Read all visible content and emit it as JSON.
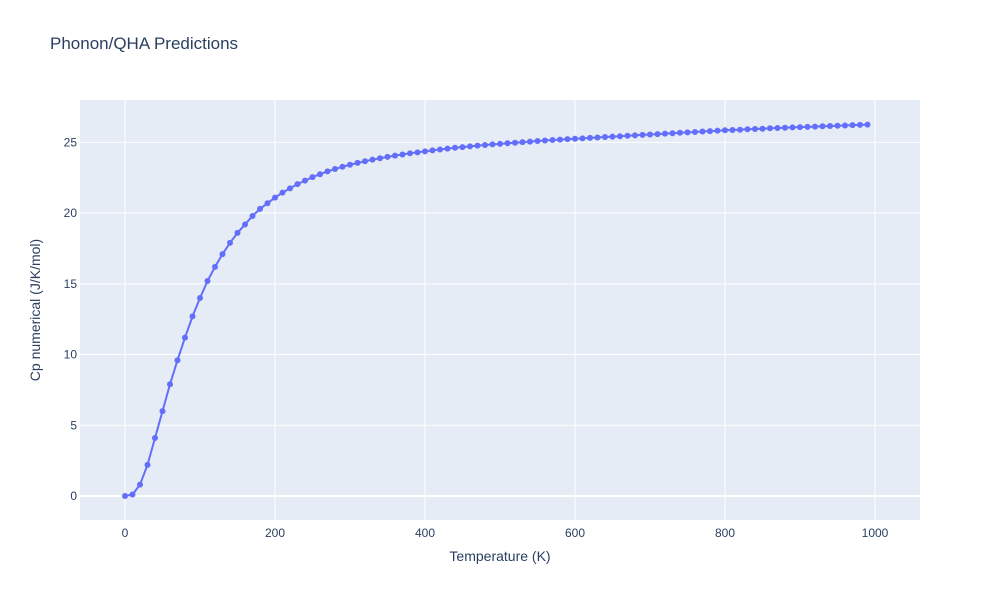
{
  "title": "Phonon/QHA Predictions",
  "chart_data": {
    "type": "line",
    "mode": "lines+markers",
    "title": "Phonon/QHA Predictions",
    "xlabel": "Temperature (K)",
    "ylabel": "Cp numerical (J/K/mol)",
    "xlim": [
      -60,
      1060
    ],
    "ylim": [
      -1.7,
      28
    ],
    "xticks": [
      0,
      200,
      400,
      600,
      800,
      1000
    ],
    "yticks": [
      0,
      5,
      10,
      15,
      20,
      25
    ],
    "grid": true,
    "legend": "none",
    "colors": {
      "series": "#636efa",
      "plot_bg": "#e5ecf6",
      "grid": "#ffffff",
      "text": "#2a3f5f"
    },
    "series": [
      {
        "x": [
          0,
          10,
          20,
          30,
          40,
          50,
          60,
          70,
          80,
          90,
          100,
          110,
          120,
          130,
          140,
          150,
          160,
          170,
          180,
          190,
          200,
          210,
          220,
          230,
          240,
          250,
          260,
          270,
          280,
          290,
          300,
          310,
          320,
          330,
          340,
          350,
          360,
          370,
          380,
          390,
          400,
          410,
          420,
          430,
          440,
          450,
          460,
          470,
          480,
          490,
          500,
          510,
          520,
          530,
          540,
          550,
          560,
          570,
          580,
          590,
          600,
          610,
          620,
          630,
          640,
          650,
          660,
          670,
          680,
          690,
          700,
          710,
          720,
          730,
          740,
          750,
          760,
          770,
          780,
          790,
          800,
          810,
          820,
          830,
          840,
          850,
          860,
          870,
          880,
          890,
          900,
          910,
          920,
          930,
          940,
          950,
          960,
          970,
          980,
          990
        ],
        "values": [
          0,
          0.1,
          0.8,
          2.2,
          4.1,
          6.0,
          7.9,
          9.6,
          11.2,
          12.7,
          14.0,
          15.2,
          16.2,
          17.1,
          17.9,
          18.6,
          19.2,
          19.8,
          20.3,
          20.7,
          21.1,
          21.45,
          21.75,
          22.05,
          22.3,
          22.55,
          22.75,
          22.95,
          23.12,
          23.28,
          23.42,
          23.55,
          23.67,
          23.78,
          23.88,
          23.98,
          24.07,
          24.15,
          24.23,
          24.3,
          24.37,
          24.44,
          24.5,
          24.56,
          24.62,
          24.67,
          24.72,
          24.77,
          24.82,
          24.86,
          24.9,
          24.94,
          24.98,
          25.02,
          25.06,
          25.1,
          25.14,
          25.17,
          25.2,
          25.23,
          25.26,
          25.29,
          25.32,
          25.35,
          25.38,
          25.41,
          25.44,
          25.47,
          25.5,
          25.53,
          25.56,
          25.59,
          25.62,
          25.65,
          25.68,
          25.71,
          25.74,
          25.77,
          25.8,
          25.83,
          25.86,
          25.88,
          25.9,
          25.93,
          25.95,
          25.97,
          26.0,
          26.02,
          26.04,
          26.06,
          26.08,
          26.1,
          26.12,
          26.14,
          26.16,
          26.18,
          26.2,
          26.22,
          26.24,
          26.26
        ]
      }
    ]
  }
}
